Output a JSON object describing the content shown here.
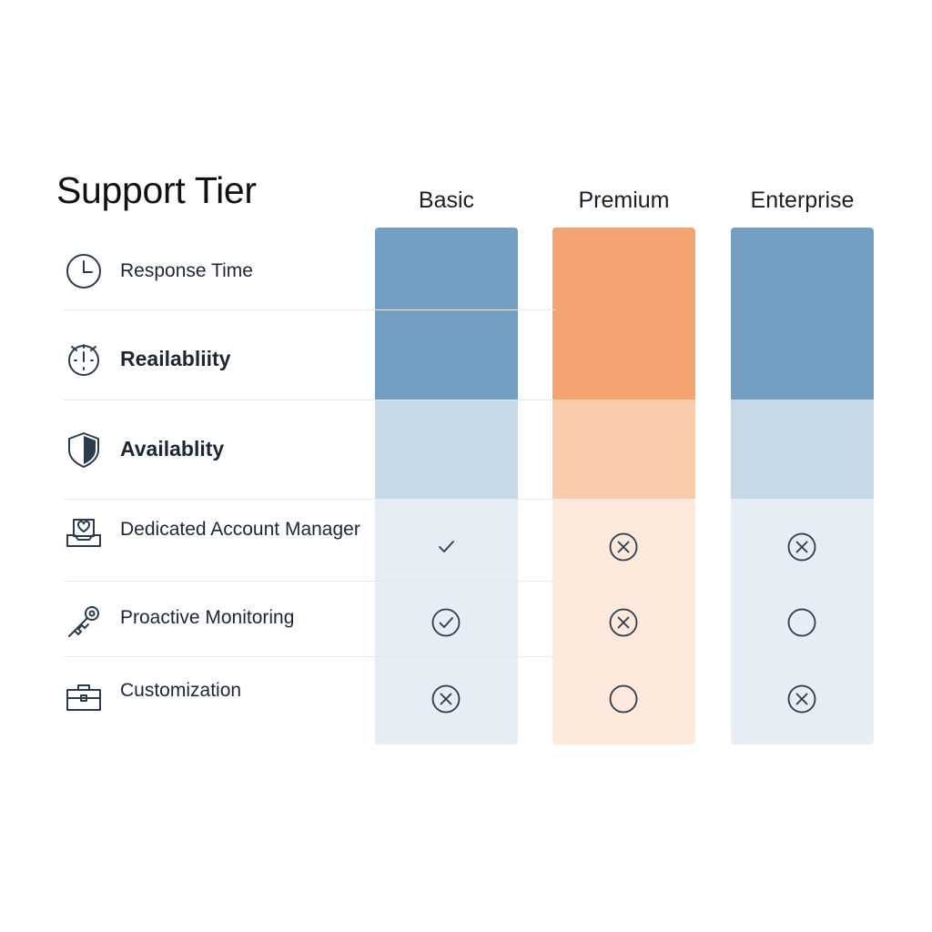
{
  "title": "Support Tier",
  "tiers": [
    {
      "key": "basic",
      "label": "Basic"
    },
    {
      "key": "premium",
      "label": "Premium"
    },
    {
      "key": "enterprise",
      "label": "Enterprise"
    }
  ],
  "colors": {
    "basic_strong": "#739fc3",
    "basic_mid": "#c7d9e6",
    "basic_light": "#e7edf5",
    "premium_strong": "#f4a470",
    "premium_mid": "#f8cbab",
    "premium_light": "#fde8dc",
    "enterprise_strong": "#739fc3",
    "enterprise_mid": "#c7d9e6",
    "enterprise_light": "#e7edf5",
    "icon_stroke": "#2b3a4c",
    "shield_fill": "#2b3a4c"
  },
  "rows": [
    {
      "key": "response-time",
      "label": "Response Time",
      "icon": "clock-icon",
      "emphasis": false,
      "marks": [
        "",
        "",
        ""
      ]
    },
    {
      "key": "reliability",
      "label": "Reailabliity",
      "icon": "stopwatch-icon",
      "emphasis": true,
      "marks": [
        "",
        "",
        ""
      ]
    },
    {
      "key": "availability",
      "label": "Availablity",
      "icon": "shield-icon",
      "emphasis": true,
      "marks": [
        "",
        "",
        ""
      ]
    },
    {
      "key": "dedicated-account-manager",
      "label": "Dedicated Account Manager",
      "icon": "account-manager-icon",
      "emphasis": false,
      "marks": [
        "check",
        "circle-x",
        "circle-x"
      ]
    },
    {
      "key": "proactive-monitoring",
      "label": "Proactive Monitoring",
      "icon": "key-icon",
      "emphasis": false,
      "marks": [
        "circle-check",
        "circle-x",
        "circle-empty"
      ]
    },
    {
      "key": "customization",
      "label": "Customization",
      "icon": "toolbox-icon",
      "emphasis": false,
      "marks": [
        "circle-x",
        "circle-empty",
        "circle-x"
      ]
    }
  ]
}
